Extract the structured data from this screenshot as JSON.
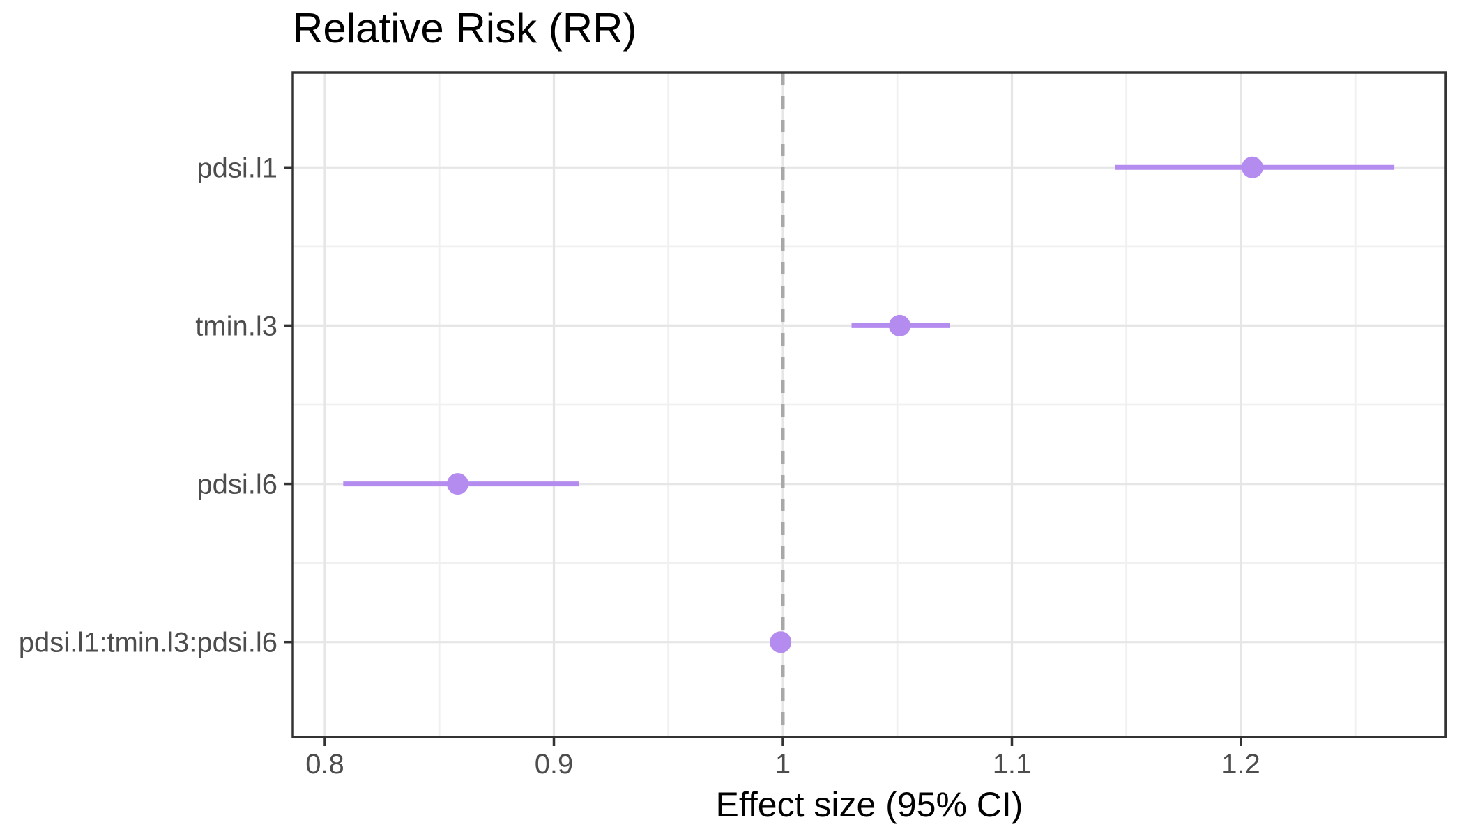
{
  "title": "Relative Risk (RR)",
  "xlabel": "Effect size (95% CI)",
  "chart_data": {
    "type": "scatter",
    "subtype": "forest-plot-point-range",
    "orientation": "horizontal",
    "title": "Relative Risk (RR)",
    "xlabel": "Effect size (95% CI)",
    "ylabel": "",
    "categories": [
      "pdsi.l1",
      "tmin.l3",
      "pdsi.l6",
      "pdsi.l1:tmin.l3:pdsi.l6"
    ],
    "series": [
      {
        "name": "Relative Risk (RR)",
        "points": [
          {
            "label": "pdsi.l1",
            "estimate": 1.205,
            "ci_low": 1.145,
            "ci_high": 1.267
          },
          {
            "label": "tmin.l3",
            "estimate": 1.051,
            "ci_low": 1.03,
            "ci_high": 1.073
          },
          {
            "label": "pdsi.l6",
            "estimate": 0.858,
            "ci_low": 0.808,
            "ci_high": 0.911
          },
          {
            "label": "pdsi.l1:tmin.l3:pdsi.l6",
            "estimate": 0.999,
            "ci_low": 0.996,
            "ci_high": 1.002
          }
        ]
      }
    ],
    "reference_line_x": 1,
    "x_ticks": [
      0.8,
      0.9,
      1,
      1.1,
      1.2
    ],
    "x_tick_labels": [
      "0.8",
      "0.9",
      "1",
      "1.1",
      "1.2"
    ],
    "x_minor_ticks": [
      0.85,
      0.95,
      1.05,
      1.15,
      1.25
    ],
    "xlim": [
      0.786,
      1.2895
    ],
    "grid": true,
    "legend": "none"
  },
  "colors": {
    "point": "#b48bef",
    "ci_line": "#b48bef",
    "reference_line": "#a8a8a8",
    "grid_major": "#e6e6e6",
    "grid_minor": "#f0f0f0",
    "panel_border": "#333333",
    "tick_mark": "#333333",
    "axis_text": "#4d4d4d",
    "title_text": "#000000",
    "background": "#ffffff"
  }
}
